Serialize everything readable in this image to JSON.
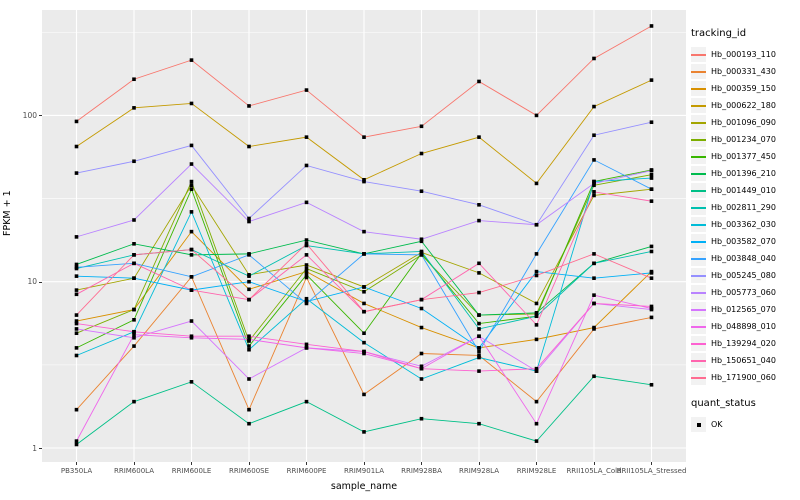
{
  "chart_data": {
    "type": "line",
    "title": "",
    "xlabel": "sample_name",
    "ylabel": "FPKM + 1",
    "y_scale": "log10",
    "ylim": [
      0.85,
      430
    ],
    "y_ticks": [
      "1",
      "10",
      "100"
    ],
    "y_tick_values": [
      1,
      10,
      100
    ],
    "y_minor_values": [
      3.162,
      31.62,
      316.2
    ],
    "grid": true,
    "legend_position": "right",
    "panel_background": "#EBEBEB",
    "gridline_color": "#FFFFFF",
    "point_color": "#000000",
    "point_shape": "square",
    "categories": [
      "PB350LA",
      "RRIM600LA",
      "RRIM600LE",
      "RRIM600SE",
      "RRIM600PE",
      "RRIM901LA",
      "RRIM928BA",
      "RRIM928LA",
      "RRIM928LE",
      "RRII105LA_Cold",
      "RRII105LA_Stressed"
    ],
    "series": [
      {
        "name": "Hb_000193_110",
        "color": "#F8766D",
        "values": [
          92,
          165,
          215,
          114,
          142,
          74,
          86,
          160,
          100,
          220,
          345
        ]
      },
      {
        "name": "Hb_000331_430",
        "color": "#EA8331",
        "values": [
          1.7,
          4.1,
          10.7,
          1.7,
          10.6,
          2.1,
          3.7,
          3.6,
          1.9,
          5.2,
          6.1
        ]
      },
      {
        "name": "Hb_000359_150",
        "color": "#D89000",
        "values": [
          5.8,
          6.8,
          20,
          9,
          11.5,
          7.4,
          5.3,
          4,
          4.5,
          5.3,
          11.5
        ]
      },
      {
        "name": "Hb_000622_180",
        "color": "#C49A00",
        "values": [
          65,
          111,
          118,
          65,
          74,
          41,
          59,
          74,
          39,
          113,
          163
        ]
      },
      {
        "name": "Hb_001096_090",
        "color": "#A3A500",
        "values": [
          8.9,
          10.5,
          38,
          11,
          12.6,
          9.3,
          15,
          11.3,
          7.4,
          33,
          36
        ]
      },
      {
        "name": "Hb_001234_070",
        "color": "#7CAE00",
        "values": [
          4.9,
          6.8,
          40,
          4.4,
          12,
          8.7,
          14.5,
          6.3,
          6.4,
          38,
          44
        ]
      },
      {
        "name": "Hb_001377_450",
        "color": "#39B600",
        "values": [
          4,
          5.9,
          36,
          4.1,
          11,
          4.9,
          14.8,
          5.6,
          6.2,
          40,
          47
        ]
      },
      {
        "name": "Hb_001396_210",
        "color": "#00BB4E",
        "values": [
          12.7,
          16.9,
          14.5,
          14.7,
          17.8,
          14.7,
          17.5,
          6.3,
          6.5,
          12.9,
          16.3
        ]
      },
      {
        "name": "Hb_001449_010",
        "color": "#00C087",
        "values": [
          1.05,
          1.9,
          2.5,
          1.4,
          1.9,
          1.25,
          1.5,
          1.4,
          1.1,
          2.7,
          2.4
        ]
      },
      {
        "name": "Hb_002811_290",
        "color": "#00C0AF",
        "values": [
          12,
          14.5,
          15.6,
          10.8,
          16.5,
          14.7,
          15.2,
          5.2,
          6.2,
          12.9,
          15.2
        ]
      },
      {
        "name": "Hb_003362_030",
        "color": "#00BCD8",
        "values": [
          3.6,
          5,
          26.3,
          3.9,
          7.9,
          4.3,
          2.6,
          3.5,
          2.9,
          40,
          42
        ]
      },
      {
        "name": "Hb_003582_070",
        "color": "#00B0F6",
        "values": [
          10.8,
          10.5,
          8.9,
          10,
          7.6,
          9.3,
          6.9,
          4,
          11.5,
          10.5,
          11.3
        ]
      },
      {
        "name": "Hb_003848_040",
        "color": "#35A2FF",
        "values": [
          12.2,
          12.9,
          10.7,
          14.5,
          7.4,
          14.7,
          14.5,
          3.8,
          14.7,
          54,
          36
        ]
      },
      {
        "name": "Hb_005245_080",
        "color": "#9590FF",
        "values": [
          45,
          53,
          66,
          24,
          50,
          40,
          35,
          29,
          22,
          76,
          91
        ]
      },
      {
        "name": "Hb_005773_060",
        "color": "#B983FF",
        "values": [
          18.6,
          23.5,
          51,
          23,
          30,
          20,
          18,
          23.3,
          22,
          39,
          46.6
        ]
      },
      {
        "name": "Hb_012565_070",
        "color": "#D575FE",
        "values": [
          5.2,
          4.6,
          5.8,
          2.6,
          4,
          3.8,
          3.1,
          4.7,
          2.9,
          7.4,
          6.8
        ]
      },
      {
        "name": "Hb_048898_010",
        "color": "#EF67EB",
        "values": [
          1.1,
          4.8,
          4.6,
          4.5,
          4,
          3.7,
          3,
          4.7,
          1.4,
          8.3,
          6.9
        ]
      },
      {
        "name": "Hb_139294_020",
        "color": "#FD61D1",
        "values": [
          5.6,
          5,
          4.7,
          4.7,
          4.2,
          3.8,
          3,
          2.9,
          3,
          7.4,
          7.1
        ]
      },
      {
        "name": "Hb_150651_040",
        "color": "#FF65AE",
        "values": [
          8.4,
          12.9,
          8.9,
          7.8,
          14.5,
          6.6,
          7.8,
          12.9,
          5.5,
          34.7,
          30.5
        ]
      },
      {
        "name": "Hb_171900_060",
        "color": "#FF6C91",
        "values": [
          6.3,
          14.5,
          15.6,
          7.8,
          16.9,
          6.6,
          7.8,
          8.6,
          10.9,
          14.7,
          10.5
        ]
      }
    ],
    "legend": {
      "color_title": "tracking_id",
      "shape_title": "quant_status",
      "shape_items": [
        {
          "label": "OK",
          "marker": "black-square"
        }
      ]
    }
  }
}
